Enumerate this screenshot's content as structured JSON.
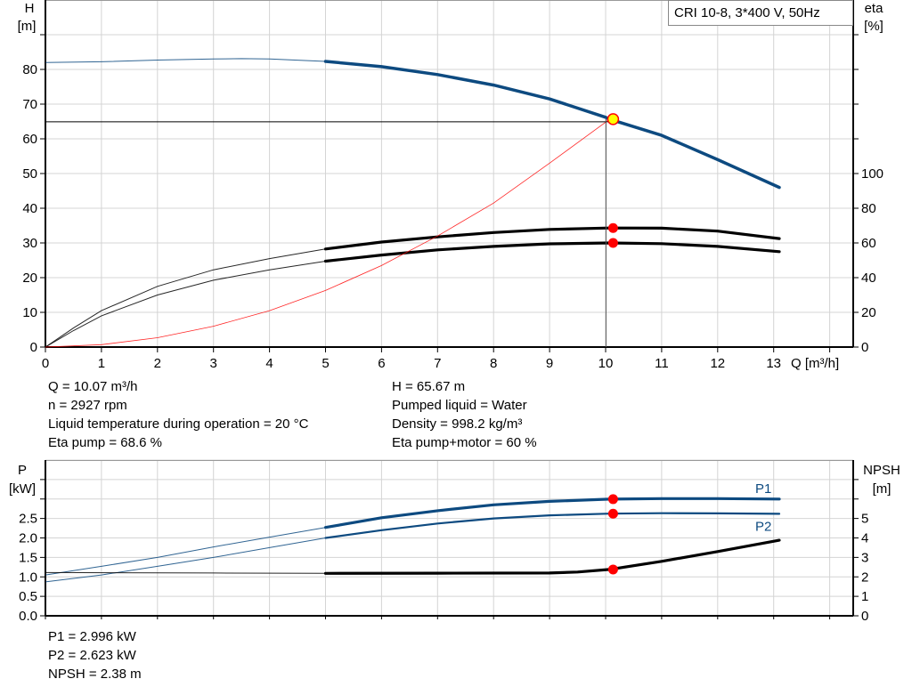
{
  "colors": {
    "blue": "#0d4a80",
    "red": "#ff0000",
    "yellow": "#ffff00",
    "grid": "#d4d4d4"
  },
  "legend_box": "CRI 10-8, 3*400 V, 50Hz",
  "operating_point": {
    "lines_left": [
      "Q = 10.07 m³/h",
      "n = 2927 rpm",
      "Liquid temperature during operation = 20 °C",
      "Eta pump = 68.6 %"
    ],
    "lines_right": [
      "H = 65.67 m",
      "Pumped liquid = Water",
      "Density = 998.2 kg/m³",
      "Eta pump+motor = 60 %"
    ],
    "lines_bottom": [
      "P1 = 2.996 kW",
      "P2 = 2.623 kW",
      "NPSH = 2.38 m"
    ]
  },
  "chart_data": [
    {
      "type": "line",
      "title": "",
      "xlabel": "Q [m³/h]",
      "ylabel_left": [
        "H",
        "[m]"
      ],
      "ylabel_right": [
        "eta",
        "[%]"
      ],
      "xlim": [
        0,
        14.4
      ],
      "ylim_left": [
        0,
        100
      ],
      "ylim_right": [
        0,
        200
      ],
      "x_ticks": [
        0,
        1,
        2,
        3,
        4,
        5,
        6,
        7,
        8,
        9,
        10,
        11,
        12,
        13
      ],
      "y_ticks_left": [
        0,
        10,
        20,
        30,
        40,
        50,
        60,
        70,
        80
      ],
      "y_ticks_right": [
        0,
        20,
        40,
        60,
        80,
        100
      ],
      "grid": true,
      "legend": "top-right",
      "series": [
        {
          "axis": "left",
          "color": "#0d4a80",
          "thick_from": 5,
          "x": [
            0,
            1,
            2,
            3,
            3.5,
            4,
            5,
            6,
            7,
            8,
            9,
            10,
            10.07,
            11,
            12,
            13.1
          ],
          "y": [
            82,
            82.2,
            82.7,
            83,
            83.1,
            83,
            82.3,
            80.8,
            78.5,
            75.5,
            71.5,
            66.2,
            65.67,
            61,
            54,
            46
          ]
        },
        {
          "axis": "right",
          "color": "#000000",
          "thick_from": 5,
          "x": [
            0,
            0.5,
            1,
            2,
            3,
            4,
            5,
            6,
            7,
            8,
            9,
            10.07,
            11,
            12,
            13.1
          ],
          "y": [
            0,
            11,
            21,
            35,
            44.5,
            51,
            56.5,
            60.5,
            63.5,
            66,
            67.8,
            68.6,
            68.5,
            66.8,
            62.5
          ]
        },
        {
          "axis": "right",
          "color": "#000000",
          "thick_from": 5,
          "x": [
            0,
            0.5,
            1,
            2,
            3,
            4,
            5,
            6,
            7,
            8,
            9,
            10.07,
            11,
            12,
            13.1
          ],
          "y": [
            0,
            9.5,
            18,
            30,
            38.5,
            44.5,
            49.5,
            53,
            56,
            58,
            59.5,
            60,
            59.6,
            58,
            55
          ]
        },
        {
          "axis": "left",
          "color": "#ff0000",
          "thick_from": null,
          "x": [
            0,
            1,
            2,
            3,
            4,
            5,
            6,
            7,
            8,
            9,
            10,
            10.07
          ],
          "y": [
            0,
            0.7,
            2.7,
            6,
            10.5,
            16.3,
            23.5,
            32,
            41.5,
            53,
            64.8,
            65.67
          ]
        }
      ],
      "operating_point": {
        "x": 10.07,
        "H": 65.67,
        "eta_pump": 68.6,
        "eta_pump_motor": 60
      }
    },
    {
      "type": "line",
      "title": "",
      "xlabel": "",
      "ylabel_left": [
        "P",
        "[kW]"
      ],
      "ylabel_right": [
        "NPSH",
        "[m]"
      ],
      "xlim": [
        0,
        14.4
      ],
      "ylim_left": [
        0,
        4.0
      ],
      "ylim_right": [
        0,
        8
      ],
      "y_ticks_left": [
        "0.0",
        "0.5",
        "1.0",
        "1.5",
        "2.0",
        "2.5"
      ],
      "y_ticks_right": [
        0,
        1,
        2,
        3,
        4,
        5
      ],
      "grid": true,
      "series": [
        {
          "name": "P1",
          "axis": "left",
          "color": "#0d4a80",
          "thick_from": 5,
          "x": [
            0,
            1,
            2,
            3,
            4,
            5,
            6,
            7,
            8,
            9,
            10.07,
            11,
            12,
            13.1
          ],
          "y": [
            1.05,
            1.27,
            1.5,
            1.77,
            2.02,
            2.27,
            2.52,
            2.7,
            2.85,
            2.94,
            2.996,
            3.01,
            3.01,
            3.0
          ]
        },
        {
          "name": "P2",
          "axis": "left",
          "color": "#0d4a80",
          "thick_from": 5,
          "x": [
            0,
            1,
            2,
            3,
            4,
            5,
            6,
            7,
            8,
            9,
            10.07,
            11,
            12,
            13.1
          ],
          "y": [
            0.87,
            1.05,
            1.27,
            1.5,
            1.75,
            2.0,
            2.2,
            2.37,
            2.5,
            2.58,
            2.623,
            2.635,
            2.63,
            2.62
          ]
        },
        {
          "axis": "right",
          "color": "#000000",
          "thick_from": 5,
          "x": [
            0,
            3,
            5,
            7,
            9,
            9.5,
            10.07,
            11,
            12,
            13.1
          ],
          "y": [
            2.22,
            2.2,
            2.18,
            2.19,
            2.2,
            2.25,
            2.38,
            2.8,
            3.3,
            3.88
          ]
        }
      ],
      "operating_point": {
        "x": 10.07,
        "P1": 2.996,
        "P2": 2.623,
        "NPSH": 2.38
      }
    }
  ]
}
